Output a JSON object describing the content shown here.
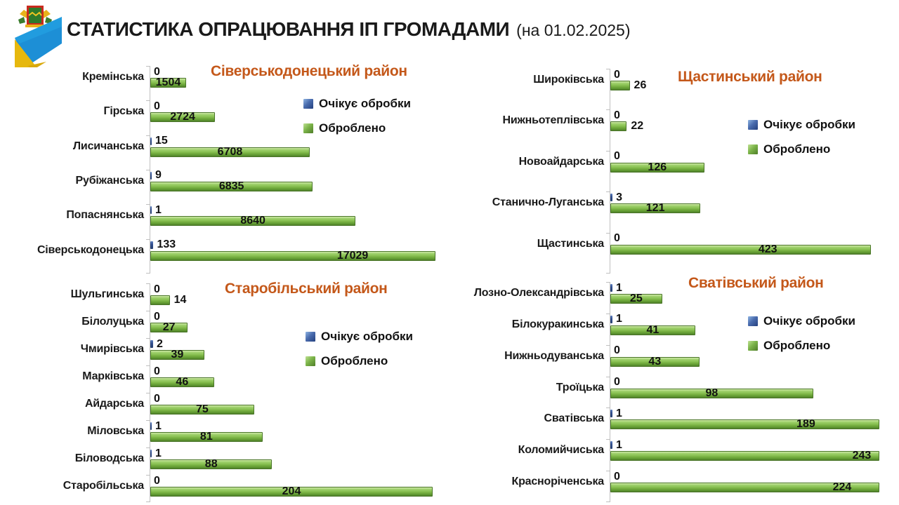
{
  "header": {
    "title": "СТАТИСТИКА ОПРАЦЮВАННЯ ІП ГРОМАДАМИ",
    "date_note": "(на 01.02.2025)"
  },
  "legend": {
    "waiting": "Очікує обробки",
    "processed": "Оброблено"
  },
  "colors": {
    "waiting_blue": "#33508F",
    "processed_green": "#7CB84F",
    "chart_title_orange": "#C4581A",
    "axis_gray": "#BFBFBF"
  },
  "chart_data": [
    {
      "type": "bar",
      "orientation": "horizontal",
      "title": "Сіверськодонецький район",
      "legend_position": "right",
      "xmax": 12000,
      "categories": [
        "Кремінська",
        "Гірська",
        "Лисичанська",
        "Рубіжанська",
        "Попаснянська",
        "Сіверськодонецька"
      ],
      "series": [
        {
          "name": "Очікує обробки",
          "values": [
            0,
            0,
            15,
            9,
            1,
            133
          ]
        },
        {
          "name": "Оброблено",
          "values": [
            1504,
            2724,
            6708,
            6835,
            8640,
            17029
          ]
        }
      ]
    },
    {
      "type": "bar",
      "orientation": "horizontal",
      "title": "Щастинський район",
      "legend_position": "right",
      "xmax": 350,
      "categories": [
        "Широківська",
        "Нижньотеплівська",
        "Новоайдарська",
        "Станично-Луганська",
        "Щастинська"
      ],
      "series": [
        {
          "name": "Очікує обробки",
          "values": [
            0,
            0,
            0,
            3,
            0
          ]
        },
        {
          "name": "Оброблено",
          "values": [
            26,
            22,
            126,
            121,
            423
          ]
        }
      ]
    },
    {
      "type": "bar",
      "orientation": "horizontal",
      "title": "Старобільський район",
      "legend_position": "right",
      "xmax": 205,
      "categories": [
        "Шульгинська",
        "Білолуцька",
        "Чмирівська",
        "Марківська",
        "Айдарська",
        "Міловська",
        "Біловодська",
        "Старобільська"
      ],
      "series": [
        {
          "name": "Очікує обробки",
          "values": [
            0,
            0,
            2,
            0,
            0,
            1,
            1,
            0
          ]
        },
        {
          "name": "Оброблено",
          "values": [
            14,
            27,
            39,
            46,
            75,
            81,
            88,
            204
          ]
        }
      ]
    },
    {
      "type": "bar",
      "orientation": "horizontal",
      "title": "Сватівський район",
      "legend_position": "right",
      "xmax": 130,
      "categories": [
        "Лозно-Олександрівська",
        "Білокуракинська",
        "Нижньодуванська",
        "Троїцька",
        "Сватівська",
        "Коломийчиська",
        "Красноріченська"
      ],
      "series": [
        {
          "name": "Очікує обробки",
          "values": [
            1,
            1,
            0,
            0,
            1,
            1,
            0
          ]
        },
        {
          "name": "Оброблено",
          "values": [
            25,
            41,
            43,
            98,
            189,
            243,
            224
          ]
        }
      ]
    }
  ]
}
